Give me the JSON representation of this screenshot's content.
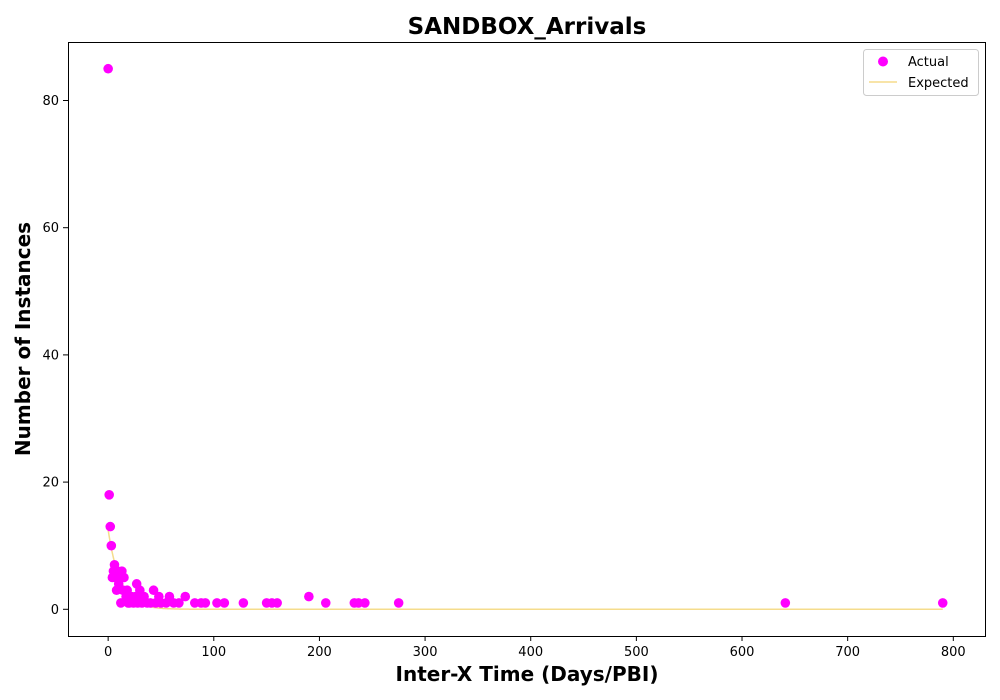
{
  "chart_data": {
    "type": "scatter",
    "title": "SANDBOX_Arrivals",
    "xlabel": "Inter-X Time (Days/PBI)",
    "ylabel": "Number of Instances",
    "xlim": [
      -38,
      830
    ],
    "ylim": [
      -4.2,
      89.2
    ],
    "xticks": [
      0,
      100,
      200,
      300,
      400,
      500,
      600,
      700,
      800
    ],
    "yticks": [
      0,
      20,
      40,
      60,
      80
    ],
    "grid": false,
    "legend_position": "top-right",
    "colors": {
      "actual": "#ff00ff",
      "expected": "#f5dc8c"
    },
    "series": [
      {
        "name": "Actual",
        "kind": "scatter",
        "points": [
          [
            0,
            85
          ],
          [
            1,
            18
          ],
          [
            2,
            13
          ],
          [
            3,
            10
          ],
          [
            4,
            5
          ],
          [
            5,
            6
          ],
          [
            6,
            7
          ],
          [
            7,
            5
          ],
          [
            8,
            3
          ],
          [
            9,
            6
          ],
          [
            10,
            4
          ],
          [
            11,
            5
          ],
          [
            12,
            1
          ],
          [
            13,
            6
          ],
          [
            14,
            3
          ],
          [
            15,
            5
          ],
          [
            17,
            2
          ],
          [
            18,
            3
          ],
          [
            19,
            1
          ],
          [
            20,
            1
          ],
          [
            22,
            2
          ],
          [
            24,
            1
          ],
          [
            26,
            2
          ],
          [
            27,
            4
          ],
          [
            28,
            1
          ],
          [
            30,
            3
          ],
          [
            32,
            1
          ],
          [
            34,
            2
          ],
          [
            37,
            1
          ],
          [
            40,
            1
          ],
          [
            43,
            3
          ],
          [
            45,
            1
          ],
          [
            48,
            2
          ],
          [
            50,
            1
          ],
          [
            55,
            1
          ],
          [
            58,
            2
          ],
          [
            62,
            1
          ],
          [
            67,
            1
          ],
          [
            73,
            2
          ],
          [
            82,
            1
          ],
          [
            88,
            1
          ],
          [
            92,
            1
          ],
          [
            103,
            1
          ],
          [
            110,
            1
          ],
          [
            128,
            1
          ],
          [
            150,
            1
          ],
          [
            155,
            1
          ],
          [
            160,
            1
          ],
          [
            190,
            2
          ],
          [
            206,
            1
          ],
          [
            233,
            1
          ],
          [
            237,
            1
          ],
          [
            243,
            1
          ],
          [
            275,
            1
          ],
          [
            641,
            1
          ],
          [
            790,
            1
          ]
        ]
      },
      {
        "name": "Expected",
        "kind": "line",
        "decay": {
          "a": 12.5,
          "scale": 11.5
        },
        "x_range": [
          0,
          790
        ]
      }
    ]
  }
}
